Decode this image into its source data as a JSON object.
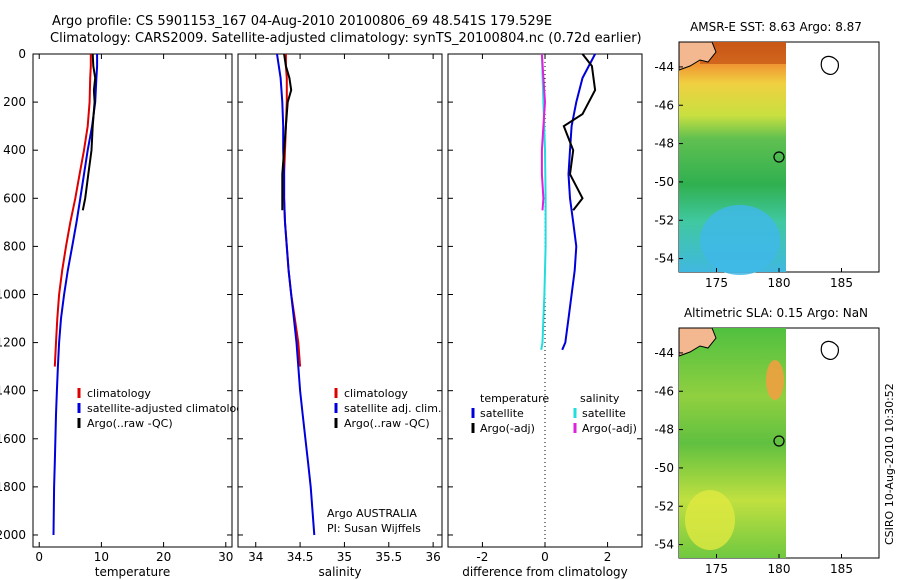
{
  "header": {
    "line1": "Argo profile: CS 5901153_167 04-Aug-2010 20100806_69 48.541S 179.529E",
    "line2": "Climatology: CARS2009. Satellite-adjusted climatology: synTS_20100804.nc (0.72d earlier)"
  },
  "footer": {
    "stamp": "CSIRO 10-Aug-2010 10:30:52",
    "agency": "Argo AUSTRALIA",
    "pi": "PI: Susan Wijffels"
  },
  "colors": {
    "climatology": "#dd0000",
    "satellite": "#0000dd",
    "argo": "#000000",
    "salinity_satellite": "#22dddd",
    "salinity_argo": "#dd22dd"
  },
  "chart_data": [
    {
      "type": "line",
      "xlabel": "temperature",
      "ylabel": "",
      "xlim": [
        -1,
        31
      ],
      "ylim": [
        2050,
        0
      ],
      "xticks": [
        0,
        10,
        20,
        30
      ],
      "yticks": [
        0,
        200,
        400,
        600,
        800,
        1000,
        1200,
        1400,
        1600,
        1800,
        2000
      ],
      "legend": [
        "climatology",
        "satellite-adjusted climatology",
        "Argo(..raw -QC)"
      ],
      "series": [
        {
          "name": "climatology",
          "color_key": "climatology",
          "x": [
            8.3,
            8.3,
            8.2,
            8.1,
            7.8,
            7.2,
            6.5,
            5.8,
            5.0,
            4.3,
            3.7,
            3.2,
            2.9,
            2.7,
            2.5
          ],
          "y": [
            0,
            50,
            100,
            200,
            300,
            400,
            500,
            600,
            700,
            800,
            900,
            1000,
            1100,
            1200,
            1300
          ]
        },
        {
          "name": "satellite-adjusted climatology",
          "color_key": "satellite",
          "x": [
            9.3,
            9.3,
            9.2,
            9.0,
            8.5,
            7.8,
            7.2,
            6.6,
            6.0,
            5.3,
            4.6,
            4.0,
            3.5,
            3.2,
            3.0,
            2.85,
            2.7,
            2.6,
            2.5,
            2.4,
            2.3
          ],
          "y": [
            0,
            50,
            100,
            200,
            300,
            400,
            500,
            600,
            700,
            800,
            900,
            1000,
            1100,
            1200,
            1300,
            1400,
            1500,
            1600,
            1700,
            1800,
            2000
          ]
        },
        {
          "name": "Argo(..raw -QC)",
          "color_key": "argo",
          "x": [
            8.6,
            8.7,
            9.0,
            8.8,
            8.9,
            8.6,
            8.4,
            7.9,
            7.4,
            7.0
          ],
          "y": [
            0,
            50,
            100,
            150,
            200,
            300,
            400,
            500,
            600,
            650
          ]
        }
      ]
    },
    {
      "type": "line",
      "xlabel": "salinity",
      "xlim": [
        33.8,
        36.1
      ],
      "ylim": [
        2050,
        0
      ],
      "xticks": [
        34,
        34.5,
        35,
        35.5,
        36
      ],
      "legend": [
        "climatology",
        "satellite adj. clim.",
        "Argo(..raw -QC)"
      ],
      "series": [
        {
          "name": "climatology",
          "color_key": "climatology",
          "x": [
            34.34,
            34.34,
            34.35,
            34.35,
            34.34,
            34.33,
            34.32,
            34.32,
            34.33,
            34.35,
            34.37,
            34.4,
            34.44,
            34.48,
            34.5
          ],
          "y": [
            0,
            50,
            100,
            200,
            300,
            400,
            500,
            600,
            700,
            800,
            900,
            1000,
            1100,
            1200,
            1300
          ]
        },
        {
          "name": "satellite adj. clim.",
          "color_key": "satellite",
          "x": [
            34.24,
            34.26,
            34.28,
            34.3,
            34.31,
            34.31,
            34.32,
            34.32,
            34.33,
            34.35,
            34.37,
            34.4,
            34.43,
            34.46,
            34.48,
            34.5,
            34.53,
            34.56,
            34.59,
            34.62,
            34.66
          ],
          "y": [
            0,
            50,
            100,
            200,
            300,
            400,
            500,
            600,
            700,
            800,
            900,
            1000,
            1100,
            1200,
            1300,
            1400,
            1500,
            1600,
            1700,
            1800,
            2000
          ]
        },
        {
          "name": "Argo(..raw -QC)",
          "color_key": "argo",
          "x": [
            34.32,
            34.34,
            34.38,
            34.4,
            34.36,
            34.34,
            34.32,
            34.3,
            34.3,
            34.3
          ],
          "y": [
            0,
            50,
            100,
            150,
            200,
            300,
            400,
            500,
            600,
            650
          ]
        }
      ]
    },
    {
      "type": "line",
      "xlabel": "difference from climatology",
      "xlim": [
        -3.1,
        3.1
      ],
      "ylim": [
        2050,
        0
      ],
      "xticks": [
        -2,
        0,
        2
      ],
      "legend_columns": [
        {
          "heading": "temperature",
          "items": [
            "satellite",
            "Argo(-adj)"
          ]
        },
        {
          "heading": "salinity",
          "items": [
            "satellite",
            "Argo(-adj)"
          ]
        }
      ],
      "series": [
        {
          "name": "satellite",
          "group": "temperature",
          "color_key": "satellite",
          "x": [
            1.6,
            1.2,
            1.0,
            0.85,
            0.8,
            0.75,
            0.8,
            0.9,
            1.0,
            0.95,
            0.85,
            0.75,
            0.65,
            0.55
          ],
          "y": [
            0,
            100,
            200,
            300,
            400,
            500,
            600,
            700,
            800,
            900,
            1000,
            1100,
            1200,
            1230
          ]
        },
        {
          "name": "Argo(-adj)",
          "group": "temperature",
          "color_key": "argo",
          "x": [
            1.2,
            1.5,
            1.6,
            1.2,
            0.6,
            0.9,
            0.8,
            1.0,
            1.2,
            0.9
          ],
          "y": [
            0,
            50,
            150,
            250,
            300,
            400,
            500,
            550,
            600,
            650
          ]
        },
        {
          "name": "satellite",
          "group": "salinity",
          "color_key": "salinity_satellite",
          "x": [
            -0.1,
            -0.05,
            0.0,
            0.02,
            0.02,
            0.0,
            -0.02,
            -0.05,
            -0.08,
            -0.12
          ],
          "y": [
            0,
            200,
            400,
            600,
            800,
            900,
            1000,
            1100,
            1200,
            1230
          ]
        },
        {
          "name": "Argo(-adj)",
          "group": "salinity",
          "color_key": "salinity_argo",
          "x": [
            -0.1,
            -0.05,
            0.0,
            -0.05,
            -0.1,
            -0.1,
            -0.05,
            -0.08
          ],
          "y": [
            0,
            100,
            200,
            300,
            400,
            500,
            600,
            650
          ]
        }
      ]
    },
    {
      "type": "heatmap",
      "title": "AMSR-E SST: 8.63 Argo: 8.87",
      "xlim": [
        172,
        188
      ],
      "ylim": [
        -54.7,
        -42.7
      ],
      "xticks": [
        175,
        180,
        185
      ],
      "yticks": [
        -44,
        -46,
        -48,
        -50,
        -52,
        -54
      ],
      "profile_location": {
        "lon": 179.529,
        "lat": -48.541
      }
    },
    {
      "type": "heatmap",
      "title": "Altimetric SLA: 0.15 Argo: NaN",
      "xlim": [
        172,
        188
      ],
      "ylim": [
        -54.7,
        -42.7
      ],
      "xticks": [
        175,
        180,
        185
      ],
      "yticks": [
        -44,
        -46,
        -48,
        -50,
        -52,
        -54
      ],
      "profile_location": {
        "lon": 179.529,
        "lat": -48.541
      }
    }
  ]
}
